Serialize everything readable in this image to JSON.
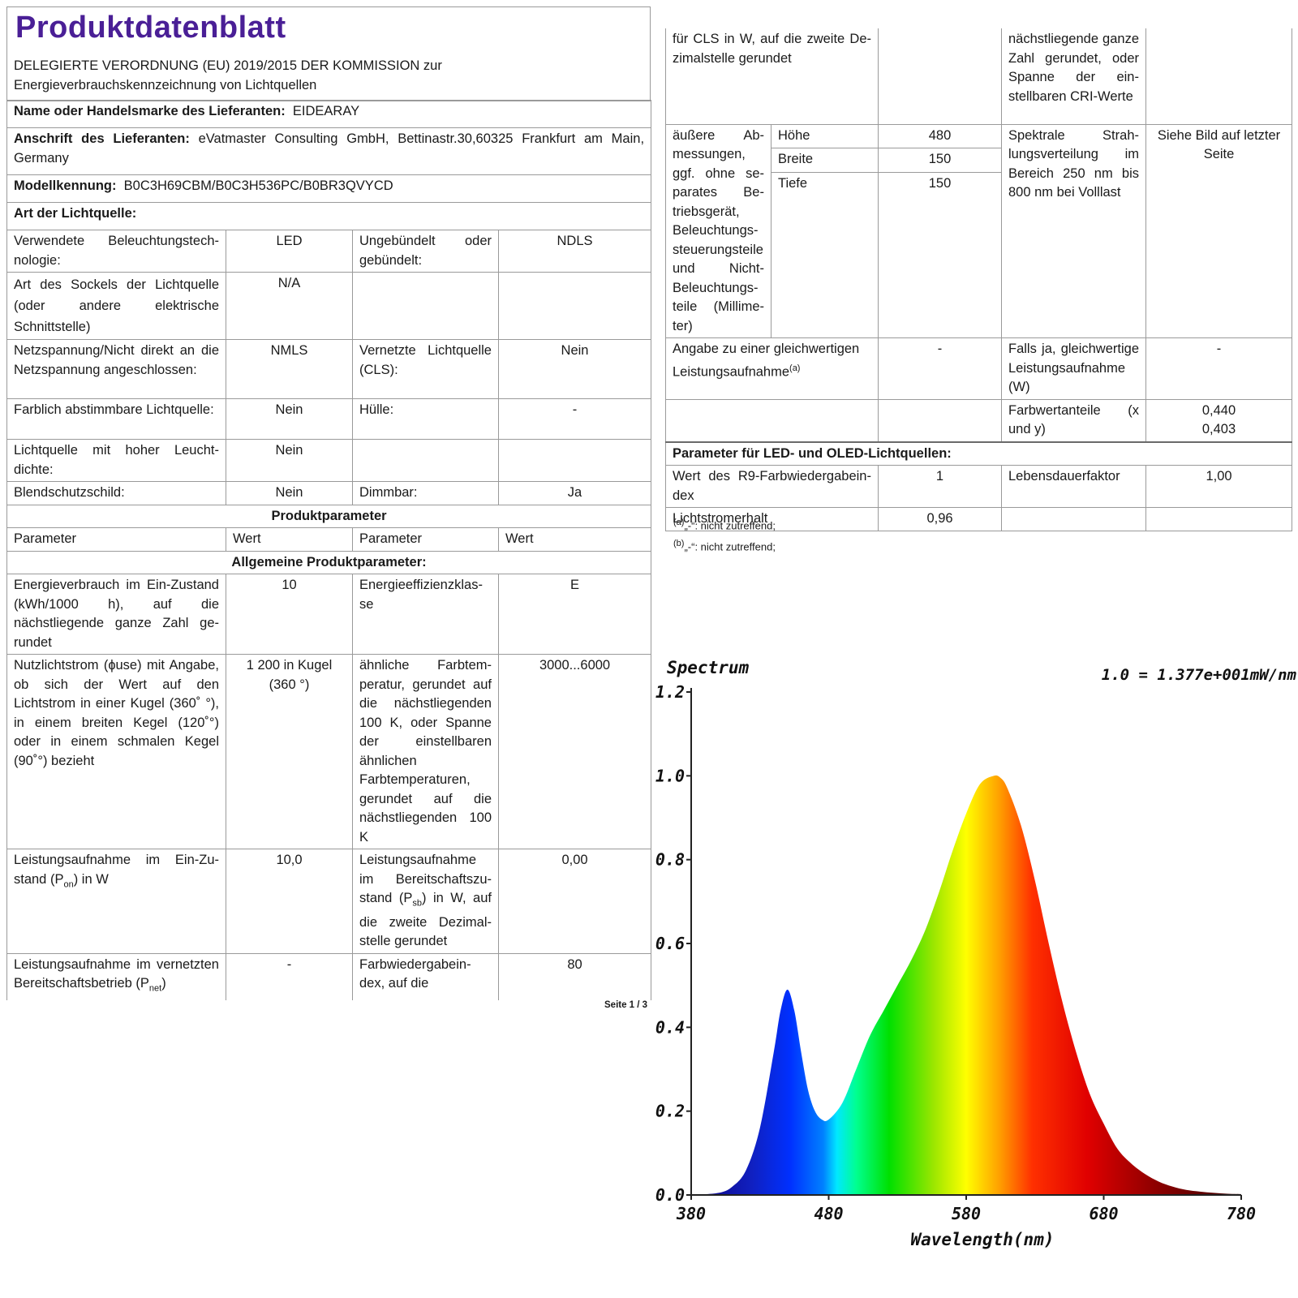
{
  "document": {
    "title": "Produktdatenblatt",
    "subtitle": "DELEGIERTE VERORDNUNG (EU) 2019/2015 DER KOMMISSION zur Energieverbrauchskennzeichnung von Lichtquellen",
    "supplier_name_label": "Name oder Handelsmarke des Lieferanten:",
    "supplier_name_value": "EIDEARAY",
    "address_label": "Anschrift des Lieferanten:",
    "address_value": "eVatmaster Consulting GmbH, Bettinastr.30,60325 Frankfurt am Main, Germany",
    "model_label": "Modellkennung:",
    "model_value": "B0C3H69CBM/B0C3H536PC/B0BR3QVYCD",
    "light_source_type_label": "Art der Lichtquelle:",
    "page_number": "Seite 1 / 3"
  },
  "light_source": [
    {
      "p1": "Verwendete Beleuchtungstech­nologie:",
      "v1": "LED",
      "p2": "Ungebündelt oder gebündelt:",
      "v2": "NDLS"
    },
    {
      "p1": "Art des Sockels der Lichtquelle (oder andere elektrische Schnittstelle)",
      "v1": "N/A",
      "p2": "",
      "v2": ""
    },
    {
      "p1": "Netzspannung/Nicht direkt an die Netzspannung angeschlos­sen:",
      "v1": "NMLS",
      "p2": "Vernetzte Lichtquel­le (CLS):",
      "v2": "Nein"
    },
    {
      "p1": "Farblich abstimmbare Licht­quelle:",
      "v1": "Nein",
      "p2": "Hülle:",
      "v2": "-"
    },
    {
      "p1": "Lichtquelle mit hoher Leucht­dichte:",
      "v1": "Nein",
      "p2": "",
      "v2": ""
    },
    {
      "p1": "Blendschutzschild:",
      "v1": "Nein",
      "p2": "Dimmbar:",
      "v2": "Ja"
    }
  ],
  "product_params": {
    "section_title": "Produktparameter",
    "col_parameter": "Parameter",
    "col_value": "Wert",
    "general_title": "Allgemeine Produktparameter:",
    "energy_consumption": {
      "label": "Energieverbrauch im Ein-Zu­stand (kWh/1000 h), auf die nächstliegende ganze Zahl ge­rundet",
      "value": "10"
    },
    "energy_class": {
      "label": "Energieeffizienzklas­se",
      "value": "E"
    },
    "luminous_flux": {
      "label": "Nutzlichtstrom (ɸuse) mit An­gabe, ob sich der Wert auf den Lichtstrom in einer Kugel (360˚ °), in einem breiten Kegel (120˚°) oder in einem schmalen Kegel (90˚°) bezieht",
      "value": "1 200 in Ku­gel (360 °)"
    },
    "cct": {
      "label": "ähnliche Farbtem­peratur, gerundet auf die nächst­liegenden 100 K, oder Spanne der einstellbaren ähnli­chen Farbtempera­turen, gerundet auf die nächstliegenden 100 K",
      "value": "3000...6000"
    },
    "power_on": {
      "label_a": "Leistungsaufnahme im Ein-Zu­stand (P",
      "label_sub": "on",
      "label_b": ") in W",
      "value": "10,0"
    },
    "power_standby": {
      "label_a": "Leistungsaufnahme im Bereitschaftszu­stand (P",
      "label_sub": "sb",
      "label_b": ") in W, auf die zweite Dezimal­stelle gerundet",
      "value": "0,00"
    },
    "power_networked": {
      "label_a": "Leistungsaufnahme im vernetz­ten Bereitschaftsbetrieb (P",
      "label_sub": "net",
      "label_b": ")",
      "value": "-"
    },
    "cri": {
      "label": "Farbwiedergabein­dex, auf die",
      "value": "80"
    }
  },
  "right_table": {
    "r1_c1": "für CLS in W, auf die zweite De­zimalstelle gerundet",
    "r1_c4": "nächstliegende gan­ze Zahl gerundet, oder Spanne der ein­stellbaren CRI-Wer­te",
    "dims_label": "äußere Ab­messungen, ggf. ohne se­parates Be­triebsgerät, Beleuchtungs­steuerungstei­le und Nicht-Beleuchtungs­teile (Millime­ter)",
    "dims": [
      {
        "name": "Höhe",
        "value": "480"
      },
      {
        "name": "Breite",
        "value": "150"
      },
      {
        "name": "Tiefe",
        "value": "150"
      }
    ],
    "spectral_label": "Spektrale Strah­lungsverteilung im Bereich 250 nm bis 800 nm bei Volllast",
    "spectral_value": "Siehe Bild auf letzter Seite",
    "equiv_label_a": "Angabe zu einer gleichwertigen Leistungsaufnahme",
    "equiv_sup": "(a)",
    "equiv_value": "-",
    "equiv_power_label": "Falls ja, gleichwerti­ge Leistungsaufnah­me (W)",
    "equiv_power_value": "-",
    "chroma_label": "Farbwertanteile (x und y)",
    "chroma_x": "0,440",
    "chroma_y": "0,403",
    "led_title": "Parameter für LED- und OLED-Lichtquellen:",
    "r9_label": "Wert des R9-Farbwiedergabein­dex",
    "r9_value": "1",
    "survival_label": "Lebensdauerfaktor",
    "survival_value": "1,00",
    "lumen_maint_label": "Lichtstromerhalt",
    "lumen_maint_value": "0,96"
  },
  "footnotes": {
    "a_sup": "(a)",
    "a_text": "„-“: nicht zutreffend;",
    "b_sup": "(b)",
    "b_text": "„-“: nicht zutreffend;"
  },
  "chart_data": {
    "type": "area",
    "title": "Spectrum",
    "annotation": "1.0 = 1.377e+001mW/nm",
    "xlabel": "Wavelength(nm)",
    "ylabel": "",
    "xlim": [
      380,
      780
    ],
    "ylim": [
      0,
      1.2
    ],
    "x_ticks": [
      "380",
      "480",
      "580",
      "680",
      "780"
    ],
    "y_ticks": [
      "0.0",
      "0.2",
      "0.4",
      "0.6",
      "0.8",
      "1.0",
      "1.2"
    ],
    "x": [
      380,
      400,
      410,
      420,
      430,
      440,
      445,
      450,
      455,
      460,
      465,
      470,
      475,
      480,
      490,
      500,
      510,
      520,
      530,
      540,
      550,
      560,
      570,
      580,
      590,
      600,
      605,
      610,
      620,
      630,
      640,
      650,
      660,
      670,
      680,
      690,
      700,
      710,
      720,
      730,
      740,
      750,
      760,
      770,
      780
    ],
    "y": [
      0.0,
      0.005,
      0.02,
      0.06,
      0.16,
      0.34,
      0.44,
      0.49,
      0.44,
      0.34,
      0.25,
      0.2,
      0.18,
      0.18,
      0.22,
      0.3,
      0.38,
      0.44,
      0.5,
      0.56,
      0.63,
      0.72,
      0.82,
      0.91,
      0.98,
      1.0,
      0.995,
      0.97,
      0.88,
      0.75,
      0.6,
      0.46,
      0.34,
      0.24,
      0.17,
      0.11,
      0.075,
      0.05,
      0.032,
      0.02,
      0.012,
      0.008,
      0.005,
      0.003,
      0.002
    ],
    "grid": false
  }
}
